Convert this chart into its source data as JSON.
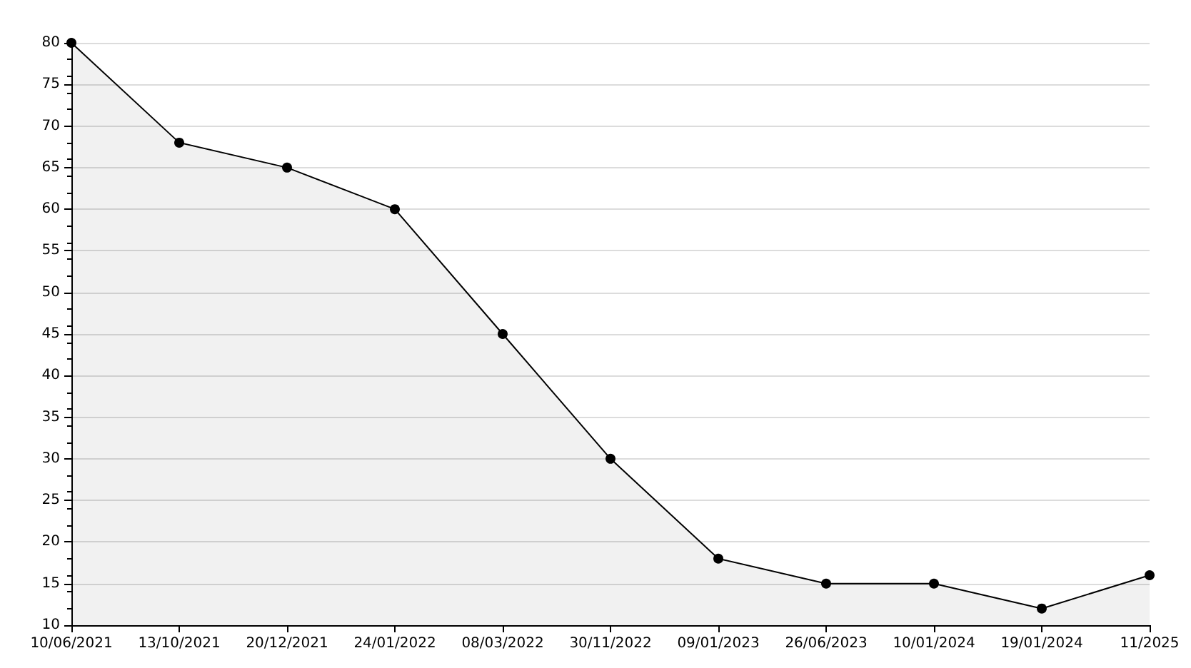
{
  "chart_data": {
    "type": "area",
    "categories": [
      "10/06/2021",
      "13/10/2021",
      "20/12/2021",
      "24/01/2022",
      "08/03/2022",
      "30/11/2022",
      "09/01/2023",
      "26/06/2023",
      "10/01/2024",
      "19/01/2024",
      "11/2025"
    ],
    "series": [
      {
        "color": "#000000",
        "values": [
          80,
          68,
          65,
          60,
          45,
          30,
          18,
          15,
          15,
          12,
          16
        ]
      }
    ],
    "ylim": [
      10,
      80
    ],
    "yticks": [
      10,
      15,
      20,
      25,
      30,
      35,
      40,
      45,
      50,
      55,
      60,
      65,
      70,
      75,
      80
    ],
    "grid": "y",
    "marker": "circle",
    "line_style": "solid"
  }
}
